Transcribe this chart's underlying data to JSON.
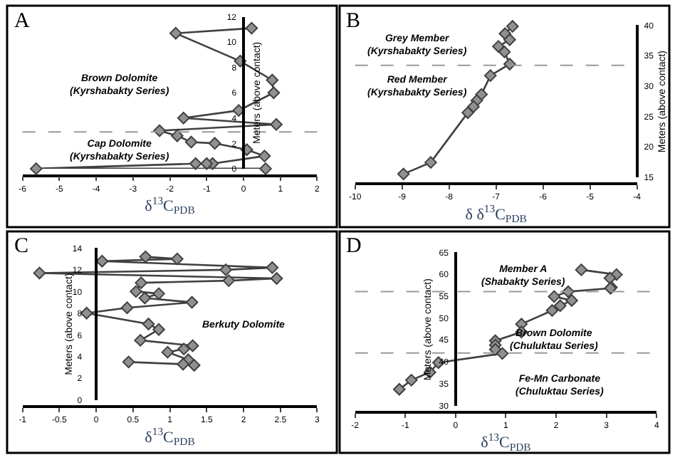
{
  "chart_data": [
    {
      "type": "line",
      "title": "A",
      "xlabel": "δ$^{13}$C$_{PDB}$",
      "ylabel": "Meters (above contact)",
      "xlim": [
        -6,
        2
      ],
      "ylim": [
        0,
        12
      ],
      "xticks": [
        -6,
        -5,
        -4,
        -3,
        -2,
        -1,
        0,
        1,
        2
      ],
      "yticks": [
        0,
        2,
        4,
        6,
        8,
        10,
        12
      ],
      "marker": "diamond",
      "line_style": "solid",
      "series": [
        {
          "color": "#404040",
          "x": [
            0.22,
            -1.84,
            -0.09,
            0.78,
            0.82,
            -0.13,
            -1.63,
            0.89,
            -2.28,
            -1.8,
            -1.42,
            -0.78,
            0.09,
            0.57,
            -0.84,
            -1.0,
            -1.3,
            -5.63,
            0.6
          ],
          "values": [
            11.1,
            10.7,
            8.5,
            7.0,
            6.0,
            4.6,
            4.0,
            3.5,
            3.0,
            2.6,
            2.1,
            2.0,
            1.5,
            1.0,
            0.4,
            0.4,
            0.4,
            0.0,
            0.0
          ]
        }
      ],
      "ref_lines": [
        {
          "axis": "y",
          "value": 2.9,
          "color": "#999999",
          "line_style": "dashed"
        }
      ],
      "annotations": [
        "Brown Dolomite\n(Kyrshabakty Series)",
        "Cap Dolomite\n(Kyrshabakty Series)"
      ]
    },
    {
      "type": "line",
      "title": "B",
      "xlabel": "δ δ$^{13}$C$_{PDB}$",
      "ylabel": "Meters (above contact)",
      "xlim": [
        -10,
        -4
      ],
      "ylim": [
        15,
        40
      ],
      "xticks": [
        -10,
        -9,
        -8,
        -7,
        -6,
        -5,
        -4
      ],
      "yticks": [
        15,
        20,
        25,
        30,
        35,
        40
      ],
      "marker": "diamond",
      "line_style": "solid",
      "series": [
        {
          "color": "#404040",
          "x": [
            -6.65,
            -6.81,
            -6.71,
            -6.95,
            -6.82,
            -6.71,
            -7.12,
            -7.31,
            -7.41,
            -7.48,
            -7.6,
            -8.39,
            -8.97
          ],
          "values": [
            39.8,
            38.6,
            37.6,
            36.5,
            35.6,
            33.6,
            31.7,
            28.6,
            27.6,
            26.6,
            25.6,
            17.4,
            15.5
          ]
        }
      ],
      "ref_lines": [
        {
          "axis": "y",
          "value": 33.4,
          "color": "#999999",
          "line_style": "dashed"
        }
      ],
      "annotations": [
        "Grey Member\n(Kyrshabakty Series)",
        "Red Member\n(Kyrshabakty Series)"
      ]
    },
    {
      "type": "line",
      "title": "C",
      "xlabel": "δ$^{13}$C$_{PDB}$",
      "ylabel": "Meters (above contact)",
      "xlim": [
        -1,
        3
      ],
      "ylim": [
        0,
        14
      ],
      "xticks": [
        -1,
        -0.5,
        0,
        0.5,
        1,
        1.5,
        2,
        2.5,
        3
      ],
      "yticks": [
        0,
        2,
        4,
        6,
        8,
        10,
        12,
        14
      ],
      "marker": "diamond",
      "line_style": "solid",
      "series": [
        {
          "color": "#404040",
          "x": [
            0.67,
            1.1,
            0.08,
            2.39,
            1.76,
            -0.77,
            2.45,
            1.8,
            0.61,
            0.54,
            0.85,
            0.66,
            1.3,
            0.42,
            -0.13,
            0.71,
            0.85,
            0.6,
            1.31,
            1.19,
            0.97,
            1.25,
            1.33,
            1.18,
            0.44
          ],
          "values": [
            13.2,
            13.0,
            12.8,
            12.2,
            12.0,
            11.7,
            11.2,
            11.0,
            10.8,
            10.0,
            9.8,
            9.4,
            9.0,
            8.5,
            8.0,
            7.0,
            6.5,
            5.5,
            5.0,
            4.7,
            4.4,
            3.7,
            3.2,
            3.3,
            3.5
          ]
        }
      ],
      "annotations": [
        "Berkuty Dolomite"
      ]
    },
    {
      "type": "line",
      "title": "D",
      "xlabel": "δ$^{13}$C$_{PDB}$",
      "ylabel": "Meters (above contact)",
      "xlim": [
        -2,
        4
      ],
      "ylim": [
        30,
        65
      ],
      "xticks": [
        -2,
        -1,
        0,
        1,
        2,
        3,
        4
      ],
      "yticks": [
        30,
        35,
        40,
        45,
        50,
        55,
        60,
        65
      ],
      "marker": "diamond",
      "line_style": "solid",
      "series": [
        {
          "color": "#404040",
          "x": [
            2.5,
            3.2,
            3.07,
            3.1,
            3.08,
            2.24,
            1.96,
            2.31,
            2.08,
            1.92,
            1.31,
            1.31,
            0.79,
            0.79,
            0.79,
            0.93,
            -0.34,
            -0.51,
            -0.88,
            -1.12
          ],
          "values": [
            61.0,
            59.9,
            59.1,
            57.0,
            56.8,
            56.0,
            54.9,
            54.0,
            52.8,
            51.7,
            48.6,
            46.8,
            44.8,
            43.8,
            42.8,
            41.9,
            39.8,
            37.6,
            35.8,
            33.7
          ]
        }
      ],
      "ref_lines": [
        {
          "axis": "y",
          "value": 56,
          "color": "#999999",
          "line_style": "dashed"
        },
        {
          "axis": "y",
          "value": 42,
          "color": "#999999",
          "line_style": "dashed"
        }
      ],
      "annotations": [
        "Member A\n(Shabakty Series)",
        "Brown Dolomite\n(Chuluktau Series)",
        "Fe-Mn Carbonate\n(Chuluktau Series)"
      ]
    }
  ]
}
